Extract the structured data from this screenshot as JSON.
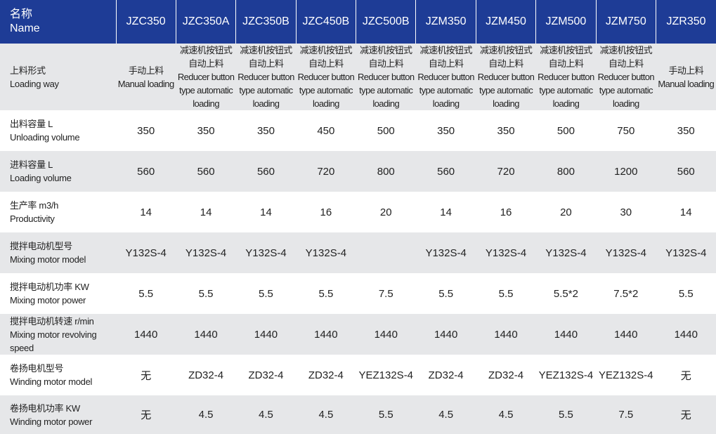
{
  "header": {
    "name_zh": "名称",
    "name_en": "Name",
    "columns": [
      "JZC350",
      "JZC350A",
      "JZC350B",
      "JZC450B",
      "JZC500B",
      "JZM350",
      "JZM450",
      "JZM500",
      "JZM750",
      "JZR350"
    ]
  },
  "rows": [
    {
      "label_zh": "上料形式",
      "label_en": "Loading way",
      "cells": [
        {
          "zh": "手动上料",
          "en": "Manual loading"
        },
        {
          "zh": "减速机按钮式自动上料",
          "en": "Reducer button type automatic loading"
        },
        {
          "zh": "减速机按钮式自动上料",
          "en": "Reducer button type automatic loading"
        },
        {
          "zh": "减速机按钮式自动上料",
          "en": "Reducer button type automatic loading"
        },
        {
          "zh": "减速机按钮式自动上料",
          "en": "Reducer button type automatic loading"
        },
        {
          "zh": "减速机按钮式自动上料",
          "en": "Reducer button type automatic loading"
        },
        {
          "zh": "减速机按钮式自动上料",
          "en": "Reducer button type automatic loading"
        },
        {
          "zh": "减速机按钮式自动上料",
          "en": "Reducer button type automatic loading"
        },
        {
          "zh": "减速机按钮式自动上料",
          "en": "Reducer button type automatic loading"
        },
        {
          "zh": "手动上料",
          "en": "Manual loading"
        }
      ]
    },
    {
      "label_zh": "出料容量 L",
      "label_en": "Unloading volume",
      "cells": [
        350,
        350,
        350,
        450,
        500,
        350,
        350,
        500,
        750,
        350
      ]
    },
    {
      "label_zh": "进料容量 L",
      "label_en": "Loading volume",
      "cells": [
        560,
        560,
        560,
        720,
        800,
        560,
        720,
        800,
        1200,
        560
      ]
    },
    {
      "label_zh": "生产率 m3/h",
      "label_en": "Productivity",
      "cells": [
        14,
        14,
        14,
        16,
        20,
        14,
        16,
        20,
        30,
        14
      ]
    },
    {
      "label_zh": "搅拌电动机型号",
      "label_en": "Mixing motor model",
      "cells": [
        "Y132S-4",
        "Y132S-4",
        "Y132S-4",
        "Y132S-4",
        null,
        "Y132S-4",
        "Y132S-4",
        "Y132S-4",
        "Y132S-4",
        "Y132S-4"
      ]
    },
    {
      "label_zh": "搅拌电动机功率 KW",
      "label_en": "Mixing motor power",
      "cells": [
        5.5,
        5.5,
        5.5,
        5.5,
        7.5,
        5.5,
        5.5,
        "5.5*2",
        "7.5*2",
        5.5
      ]
    },
    {
      "label_zh": "搅拌电动机转速 r/min",
      "label_en": "Mixing motor revolving speed",
      "cells": [
        1440,
        1440,
        1440,
        1440,
        1440,
        1440,
        1440,
        1440,
        1440,
        1440
      ]
    },
    {
      "label_zh": "卷扬电机型号",
      "label_en": "Winding motor model",
      "cells": [
        "无",
        "ZD32-4",
        "ZD32-4",
        "ZD32-4",
        "YEZ132S-4",
        "ZD32-4",
        "ZD32-4",
        "YEZ132S-4",
        "YEZ132S-4",
        "无"
      ]
    },
    {
      "label_zh": "卷扬电机功率 KW",
      "label_en": "Winding motor power",
      "cells": [
        "无",
        4.5,
        4.5,
        4.5,
        5.5,
        4.5,
        4.5,
        5.5,
        7.5,
        "无"
      ]
    }
  ]
}
